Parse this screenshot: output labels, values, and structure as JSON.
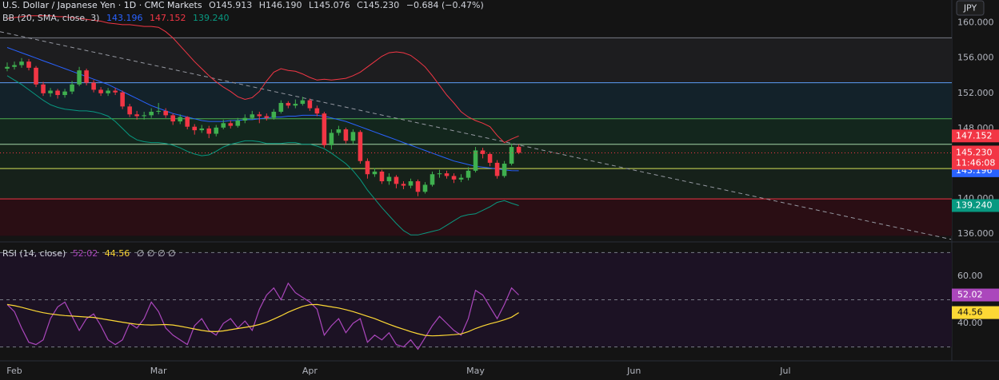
{
  "chart_data": [
    {
      "type": "candlestick",
      "title": "U.S. Dollar / Japanese Yen · 1D · CMC Markets",
      "ohlc_labels": [
        "O145.913",
        "H146.190",
        "L145.076",
        "C145.230"
      ],
      "change": "−0.684 (−0.47%)",
      "currency": "JPY",
      "close_tag": "145.230",
      "countdown": "11:46:08",
      "up_color": "#3fb04f",
      "down_color": "#f23645",
      "x": [
        -1,
        0,
        1,
        2,
        3,
        4,
        5,
        6,
        7,
        8,
        9,
        10,
        11,
        12,
        13,
        14,
        15,
        16,
        17,
        18,
        19,
        20,
        21,
        22,
        23,
        24,
        25,
        26,
        27,
        28,
        29,
        30,
        31,
        32,
        33,
        34,
        35,
        36,
        37,
        38,
        39,
        40,
        41,
        42,
        43,
        44,
        45,
        46,
        47,
        48,
        49,
        50,
        51,
        52,
        53,
        54,
        55,
        56,
        57,
        58,
        59,
        60,
        61,
        62,
        63,
        64,
        65,
        66,
        67,
        68,
        69,
        70
      ],
      "open": [
        154.8,
        155.0,
        155.2,
        155.6,
        154.9,
        153.0,
        152.0,
        152.3,
        151.8,
        152.2,
        153.0,
        154.6,
        153.2,
        152.4,
        152.0,
        152.3,
        152.1,
        150.5,
        149.6,
        149.4,
        149.5,
        149.9,
        150.0,
        149.5,
        148.8,
        149.3,
        148.2,
        147.8,
        148.0,
        147.4,
        148.1,
        148.6,
        148.3,
        148.9,
        149.2,
        149.6,
        149.4,
        149.2,
        149.9,
        150.9,
        150.6,
        150.8,
        151.2,
        150.3,
        149.7,
        146.1,
        147.5,
        147.9,
        146.6,
        147.6,
        144.3,
        142.8,
        143.1,
        142.0,
        142.5,
        141.7,
        141.5,
        142.0,
        140.8,
        141.6,
        142.8,
        142.9,
        142.6,
        142.2,
        142.4,
        143.2,
        145.5,
        145.1,
        144.1,
        142.6,
        144.0,
        145.913
      ],
      "high": [
        155.5,
        155.6,
        156.0,
        155.9,
        155.1,
        153.3,
        152.6,
        152.5,
        152.5,
        153.4,
        155.0,
        154.8,
        153.5,
        152.7,
        152.6,
        152.6,
        152.3,
        150.8,
        150.0,
        149.9,
        150.3,
        150.9,
        150.3,
        149.7,
        149.6,
        149.4,
        148.5,
        148.4,
        148.3,
        148.4,
        149.0,
        148.9,
        149.2,
        149.6,
        150.0,
        149.9,
        149.7,
        150.2,
        151.2,
        151.1,
        151.3,
        151.6,
        151.4,
        150.6,
        149.9,
        147.9,
        148.3,
        148.1,
        147.9,
        147.8,
        144.6,
        143.5,
        143.3,
        142.9,
        142.7,
        142.0,
        142.3,
        142.2,
        141.9,
        143.1,
        143.3,
        143.2,
        142.9,
        142.8,
        143.6,
        145.9,
        145.8,
        145.3,
        144.4,
        144.3,
        146.3,
        146.19
      ],
      "low": [
        154.5,
        154.7,
        154.9,
        154.6,
        152.7,
        151.7,
        151.6,
        151.4,
        151.5,
        151.9,
        152.8,
        152.9,
        152.1,
        151.7,
        151.7,
        151.8,
        150.2,
        149.3,
        149.0,
        149.0,
        149.2,
        149.6,
        149.2,
        148.4,
        148.5,
        147.9,
        147.3,
        147.5,
        146.9,
        147.1,
        147.9,
        148.0,
        148.1,
        148.6,
        149.0,
        148.6,
        148.9,
        149.0,
        149.7,
        150.3,
        150.3,
        150.6,
        150.0,
        149.4,
        145.8,
        145.6,
        147.2,
        146.3,
        146.2,
        144.0,
        142.3,
        142.5,
        141.7,
        141.6,
        141.2,
        141.1,
        141.2,
        140.3,
        140.6,
        141.4,
        142.4,
        142.3,
        141.8,
        141.9,
        142.1,
        143.0,
        144.6,
        143.7,
        142.3,
        142.4,
        143.8,
        145.076
      ],
      "close": [
        155.0,
        155.2,
        155.6,
        154.9,
        153.0,
        152.0,
        152.3,
        151.8,
        152.2,
        153.0,
        154.6,
        153.2,
        152.4,
        152.0,
        152.3,
        152.1,
        150.5,
        149.6,
        149.4,
        149.5,
        149.9,
        150.0,
        149.5,
        148.8,
        149.3,
        148.2,
        147.8,
        148.0,
        147.4,
        148.1,
        148.6,
        148.3,
        148.9,
        149.2,
        149.6,
        149.4,
        149.2,
        149.9,
        150.9,
        150.6,
        150.8,
        151.2,
        150.3,
        149.7,
        146.1,
        147.5,
        147.9,
        146.6,
        147.6,
        144.3,
        142.8,
        143.1,
        142.0,
        142.5,
        141.7,
        141.5,
        142.0,
        140.8,
        141.6,
        142.8,
        142.9,
        142.6,
        142.2,
        142.4,
        143.2,
        145.5,
        145.1,
        144.1,
        142.6,
        144.0,
        145.9,
        145.23
      ],
      "indicator": {
        "title": "BB (20, SMA, close, 3)",
        "series": [
          {
            "color": "#2962ff",
            "tag": "143.196",
            "values": [
              157.2,
              156.9,
              156.6,
              156.3,
              156.0,
              155.7,
              155.4,
              155.1,
              154.8,
              154.5,
              154.2,
              153.9,
              153.6,
              153.3,
              153.0,
              152.6,
              152.2,
              151.8,
              151.4,
              151.0,
              150.6,
              150.3,
              150.0,
              149.7,
              149.5,
              149.3,
              149.1,
              148.9,
              148.8,
              148.8,
              148.8,
              148.9,
              148.9,
              149.0,
              149.0,
              149.1,
              149.2,
              149.3,
              149.3,
              149.4,
              149.4,
              149.5,
              149.5,
              149.5,
              149.4,
              149.2,
              149.0,
              148.8,
              148.5,
              148.2,
              147.9,
              147.6,
              147.3,
              147.0,
              146.7,
              146.4,
              146.1,
              145.8,
              145.5,
              145.2,
              144.9,
              144.6,
              144.3,
              144.1,
              143.9,
              143.7,
              143.6,
              143.5,
              143.4,
              143.3,
              143.2,
              143.196
            ]
          },
          {
            "color": "#f23645",
            "tag": "147.152",
            "values": [
              160.5,
              160.6,
              160.7,
              160.8,
              160.8,
              160.8,
              160.8,
              160.7,
              160.7,
              160.6,
              160.5,
              160.4,
              160.3,
              160.2,
              160.0,
              159.9,
              159.8,
              159.8,
              159.7,
              159.6,
              159.6,
              159.5,
              159.0,
              158.3,
              157.4,
              156.5,
              155.6,
              154.8,
              154.0,
              153.3,
              152.7,
              152.2,
              151.6,
              151.3,
              151.5,
              152.2,
              153.4,
              154.4,
              154.8,
              154.6,
              154.5,
              154.2,
              153.8,
              153.5,
              153.6,
              153.5,
              153.6,
              153.7,
              154.0,
              154.4,
              155.0,
              155.6,
              156.2,
              156.6,
              156.7,
              156.6,
              156.3,
              155.7,
              155.0,
              154.0,
              152.9,
              151.8,
              150.9,
              149.9,
              149.3,
              148.9,
              148.6,
              148.2,
              147.2,
              146.4,
              146.8,
              147.152
            ]
          },
          {
            "color": "#089981",
            "tag": "139.240",
            "values": [
              154.0,
              153.5,
              153.0,
              152.4,
              151.8,
              151.2,
              150.7,
              150.4,
              150.2,
              150.1,
              150.0,
              150.0,
              149.9,
              149.7,
              149.4,
              148.8,
              148.0,
              147.2,
              146.7,
              146.5,
              146.4,
              146.4,
              146.3,
              146.1,
              145.8,
              145.4,
              145.1,
              144.9,
              145.0,
              145.4,
              145.9,
              146.2,
              146.4,
              146.6,
              146.6,
              146.5,
              146.3,
              146.3,
              146.3,
              146.4,
              146.4,
              146.2,
              146.2,
              146.0,
              145.7,
              145.2,
              144.6,
              144.0,
              143.2,
              142.2,
              141.0,
              140.0,
              139.0,
              138.1,
              137.2,
              136.4,
              135.9,
              135.9,
              136.1,
              136.3,
              136.5,
              137.0,
              137.5,
              138.0,
              138.2,
              138.3,
              138.7,
              139.1,
              139.6,
              139.8,
              139.5,
              139.24
            ]
          }
        ]
      },
      "levels": [
        {
          "value": 158.3,
          "color": "#787b86",
          "fill": "#1d1d1f"
        },
        {
          "value": 153.2,
          "color": "#5b9cf6",
          "fill": "#13222a"
        },
        {
          "value": 149.1,
          "color": "#4caf50",
          "fill": "#13261d"
        },
        {
          "value": 146.2,
          "color": "#a5d6a7",
          "fill": "#152419"
        },
        {
          "value": 143.45,
          "color": "#d4e157",
          "fill": "#16211a"
        },
        {
          "value": 140.0,
          "color": "#f23645",
          "fill": "#2a0e14"
        }
      ],
      "zone_bottom": 135.8,
      "trendline": {
        "x": [
          -2,
          130
        ],
        "y": [
          159.0,
          135.4
        ],
        "color": "#9598a1"
      },
      "xlim": [
        -2,
        130.1
      ],
      "ylim": [
        135.2,
        162.6
      ],
      "yticks": [
        {
          "value": 136,
          "label": "136.000"
        },
        {
          "value": 140,
          "label": "140.000"
        },
        {
          "value": 148,
          "label": "148.000"
        },
        {
          "value": 152,
          "label": "152.000"
        },
        {
          "value": 156,
          "label": "156.000"
        },
        {
          "value": 160,
          "label": "160.000"
        }
      ],
      "xticks": [
        {
          "value": 0,
          "label": "Feb"
        },
        {
          "value": 20,
          "label": "Mar"
        },
        {
          "value": 41,
          "label": "Apr"
        },
        {
          "value": 64,
          "label": "May"
        },
        {
          "value": 86,
          "label": "Jun"
        },
        {
          "value": 107,
          "label": "Jul"
        }
      ]
    },
    {
      "type": "line",
      "title": "RSI (14, close)",
      "extra": "∅ ∅ ∅ ∅",
      "series": [
        {
          "color": "#ab47bc",
          "tag_text": "#ffffff",
          "values": [
            48,
            45,
            38,
            32,
            31,
            33,
            42,
            47,
            49,
            43,
            37,
            42,
            44,
            39,
            33,
            31,
            33,
            40,
            38,
            42,
            49,
            45,
            38,
            35,
            33,
            31,
            39,
            42,
            37,
            35,
            40,
            42,
            38,
            41,
            37,
            46,
            52,
            55,
            50,
            57,
            53,
            51,
            49,
            46,
            35,
            39,
            42,
            36,
            40,
            42,
            32,
            35,
            33,
            36,
            31,
            30,
            33,
            29,
            34,
            39,
            43,
            40,
            37,
            35,
            42,
            54,
            52,
            47,
            42,
            48,
            55,
            52.02
          ]
        },
        {
          "color": "#fdd835",
          "tag_text": "#131313",
          "values": [
            48.0,
            47.5,
            46.8,
            46.0,
            45.2,
            44.5,
            44.0,
            43.6,
            43.3,
            43.1,
            42.9,
            42.7,
            42.5,
            42.0,
            41.5,
            41.0,
            40.5,
            40.0,
            39.6,
            39.4,
            39.3,
            39.4,
            39.5,
            39.3,
            38.8,
            38.2,
            37.6,
            37.0,
            36.6,
            36.5,
            36.8,
            37.3,
            37.8,
            38.3,
            38.8,
            39.5,
            40.5,
            41.8,
            43.2,
            44.7,
            46.0,
            47.2,
            47.9,
            48.0,
            47.5,
            47.0,
            46.5,
            45.8,
            45.0,
            44.0,
            43.0,
            42.0,
            40.8,
            39.6,
            38.5,
            37.5,
            36.5,
            35.6,
            34.9,
            34.7,
            34.8,
            35.0,
            35.2,
            35.5,
            36.5,
            37.8,
            38.9,
            39.8,
            40.6,
            41.5,
            42.6,
            44.56
          ]
        }
      ],
      "levels": [
        70,
        50,
        30
      ],
      "band_fill": "#1c1224",
      "ylim": [
        24.1,
        74.2
      ],
      "yticks": [
        {
          "value": 40,
          "label": "40.00"
        },
        {
          "value": 60,
          "label": "60.00"
        }
      ]
    }
  ]
}
